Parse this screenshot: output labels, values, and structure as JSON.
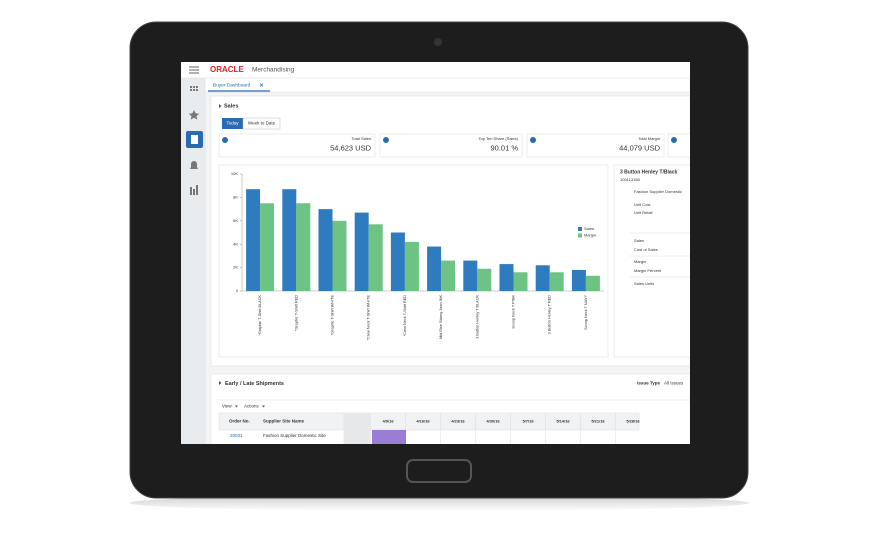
{
  "app": {
    "brand": "ORACLE",
    "product": "Merchandising",
    "tab": "Buyer Dashboard"
  },
  "sales": {
    "title": "Sales",
    "buttons": [
      "Today",
      "Week to Date"
    ],
    "kpis": [
      {
        "label": "Total Sales",
        "value": "54,623 USD"
      },
      {
        "label": "Top Ten Share (Sales)",
        "value": "90.01 %"
      },
      {
        "label": "Total Margin",
        "value": "44,079 USD"
      }
    ]
  },
  "chart_data": {
    "type": "bar",
    "categories": [
      "*Graphic T-Shirt BLACK",
      "*Graphic T-Shirt RED",
      "*Graphic T-Shirt WHITE",
      "*Crew Neck T-Shirt WHITE",
      "*Crew Neck T-Shirt RED",
      "Mid Rise Skinny Jean INK",
      "3 Button Henley T BLACK",
      "Scoop Neck T PINK",
      "3 Button Henley T RED",
      "Scoop Neck T NAVY"
    ],
    "series": [
      {
        "name": "Sales",
        "color": "#2f7bbf",
        "values": [
          8700,
          8700,
          7000,
          6700,
          5000,
          3800,
          2600,
          2300,
          2200,
          1800
        ]
      },
      {
        "name": "Margin",
        "color": "#6cc383",
        "values": [
          7500,
          7500,
          6000,
          5700,
          4200,
          2600,
          1900,
          1600,
          1600,
          1300
        ]
      }
    ],
    "ylim": [
      0,
      10000
    ],
    "yticks": [
      0,
      {
        "value": 2000,
        "label": "2K"
      },
      {
        "value": 4000,
        "label": "4K"
      },
      {
        "value": 6000,
        "label": "6K"
      },
      {
        "value": 8000,
        "label": "8K"
      },
      {
        "value": 10000,
        "label": "10K"
      }
    ],
    "legend": "right"
  },
  "detail": {
    "title": "3 Button Henley T/Black",
    "id": "100113158",
    "supplier": "Fashion Supplier Domestic",
    "fields": [
      "Unit Cost",
      "Unit Retail",
      "Sales",
      "Cost of Sales",
      "Margin",
      "Margin Percent",
      "Sales Units"
    ]
  },
  "shipments": {
    "title": "Early / Late Shipments",
    "filter_label": "Issue Type",
    "filter_value": "All Issues",
    "toolbar": [
      "View",
      "Actions"
    ],
    "columns": [
      "Order No.",
      "Supplier Site Name"
    ],
    "dates": [
      "4/9/16",
      "4/16/16",
      "4/23/16",
      "4/30/16",
      "5/7/16",
      "5/14/16",
      "5/21/16",
      "5/28/16"
    ],
    "rows": [
      [
        "20031",
        "Fashion Supplier Domestic Site"
      ]
    ]
  }
}
